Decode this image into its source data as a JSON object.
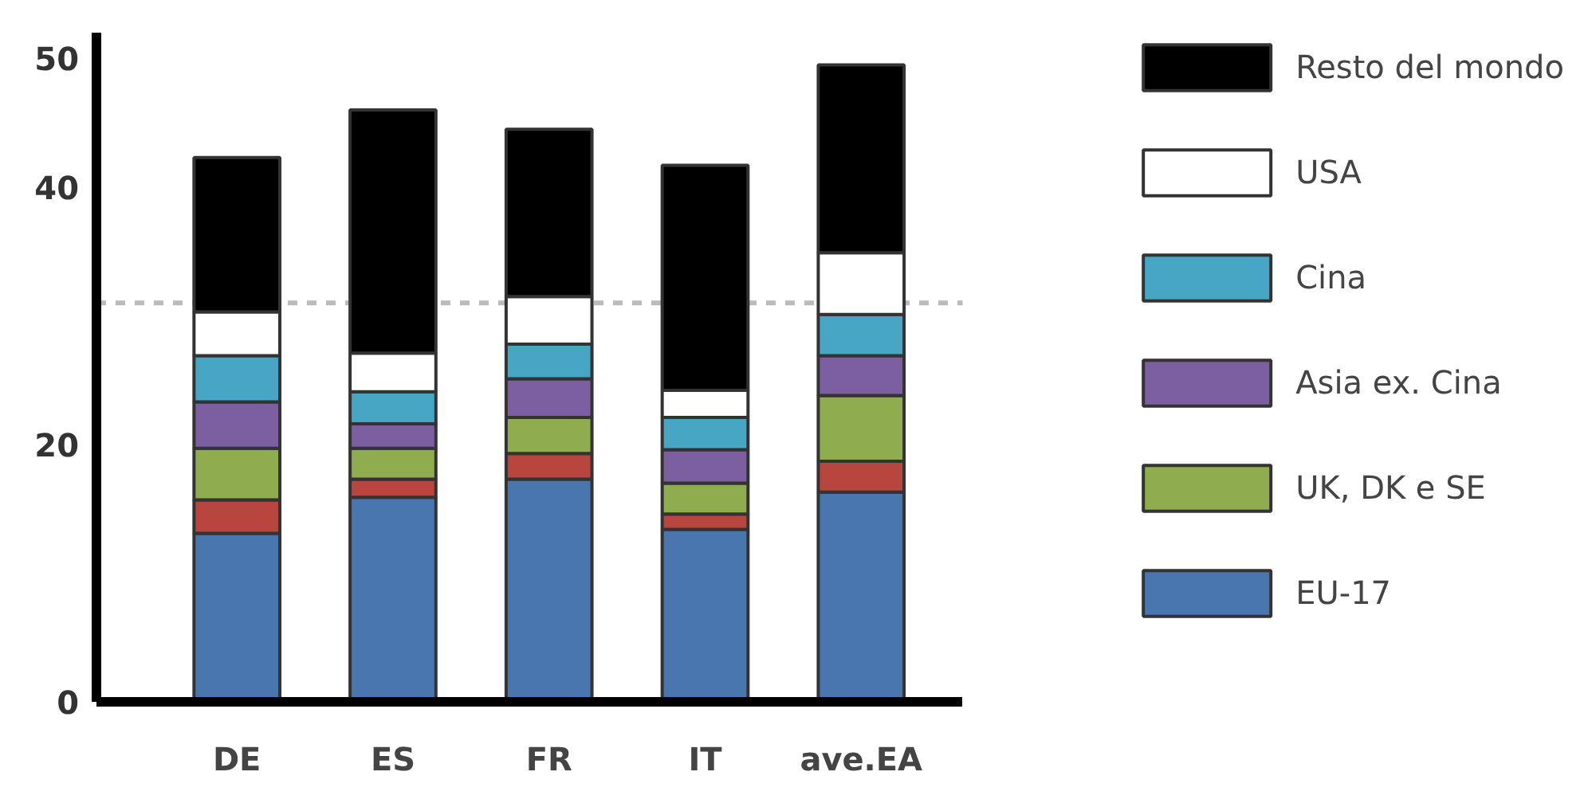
{
  "chart_data": {
    "type": "bar",
    "stacked": true,
    "categories": [
      "DE",
      "ES",
      "FR",
      "IT",
      "ave.EA"
    ],
    "series": [
      {
        "name": "EU-17",
        "color": "#4a76b0",
        "values": [
          13.1,
          15.9,
          17.3,
          13.4,
          16.3
        ]
      },
      {
        "color": "#b8463f",
        "values": [
          2.6,
          1.4,
          2.0,
          1.2,
          2.4
        ]
      },
      {
        "name": "UK, DK e SE",
        "color": "#8fad4f",
        "values": [
          4.0,
          2.4,
          2.8,
          2.4,
          5.1
        ]
      },
      {
        "name": "Asia ex. Cina",
        "color": "#7c5fa0",
        "values": [
          3.6,
          1.9,
          3.0,
          2.6,
          3.1
        ]
      },
      {
        "name": "Cina",
        "color": "#46a6c4",
        "values": [
          3.6,
          2.5,
          2.7,
          2.5,
          3.2
        ]
      },
      {
        "name": "USA",
        "color": "#ffffff",
        "values": [
          3.4,
          3.0,
          3.7,
          2.1,
          4.8
        ]
      },
      {
        "name": "Resto del mondo",
        "color": "#000000",
        "values": [
          12.0,
          18.9,
          13.0,
          17.5,
          14.6
        ]
      }
    ],
    "ylim": [
      0,
      52
    ],
    "yticks": [
      0,
      20,
      40,
      50
    ],
    "grid": false,
    "legend": "right",
    "ref_lines": [
      {
        "axis": "y",
        "value": 31,
        "color": "#bbbbbb",
        "line_style": "dashed"
      }
    ]
  }
}
